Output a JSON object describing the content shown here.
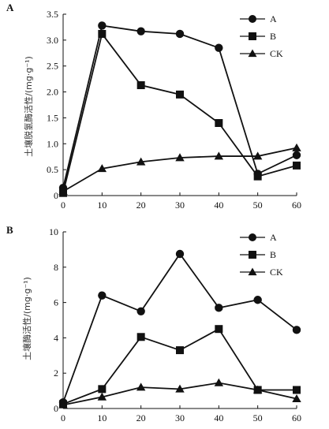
{
  "chart_data": [
    {
      "type": "line",
      "panel_label": "A",
      "ylabel": "土壤脱氢酶活性/(mg·g⁻¹)",
      "xlabel": "",
      "x": [
        0,
        10,
        20,
        30,
        40,
        50,
        60
      ],
      "xlim": [
        0,
        60
      ],
      "xticks": [
        0,
        10,
        20,
        30,
        40,
        50,
        60
      ],
      "ylim": [
        0,
        3.5
      ],
      "yticks": [
        "0",
        "0.5",
        "1.0",
        "1.5",
        "2.0",
        "2.5",
        "3.0",
        "3.5"
      ],
      "grid": false,
      "legend": "top-right",
      "series": [
        {
          "name": "A",
          "marker": "circle",
          "values": [
            0.15,
            3.28,
            3.17,
            3.12,
            2.85,
            0.42,
            0.78
          ]
        },
        {
          "name": "B",
          "marker": "square",
          "values": [
            0.05,
            3.12,
            2.13,
            1.95,
            1.4,
            0.37,
            0.58
          ]
        },
        {
          "name": "CK",
          "marker": "triangle",
          "values": [
            0.08,
            0.52,
            0.65,
            0.73,
            0.76,
            0.76,
            0.92
          ]
        }
      ]
    },
    {
      "type": "line",
      "panel_label": "B",
      "ylabel": "土壤酶活性/(mg·g⁻¹)",
      "xlabel": "",
      "x": [
        0,
        10,
        20,
        30,
        40,
        50,
        60
      ],
      "xlim": [
        0,
        60
      ],
      "xticks": [
        0,
        10,
        20,
        30,
        40,
        50,
        60
      ],
      "ylim": [
        0,
        10
      ],
      "yticks": [
        "0",
        "2",
        "4",
        "6",
        "8",
        "10"
      ],
      "grid": false,
      "legend": "top-right",
      "series": [
        {
          "name": "A",
          "marker": "circle",
          "values": [
            0.35,
            6.4,
            5.5,
            8.75,
            5.7,
            6.15,
            4.45
          ]
        },
        {
          "name": "B",
          "marker": "square",
          "values": [
            0.25,
            1.1,
            4.05,
            3.3,
            4.5,
            1.05,
            1.05
          ]
        },
        {
          "name": "CK",
          "marker": "triangle",
          "values": [
            0.2,
            0.65,
            1.2,
            1.1,
            1.45,
            1.05,
            0.55
          ]
        }
      ]
    }
  ]
}
